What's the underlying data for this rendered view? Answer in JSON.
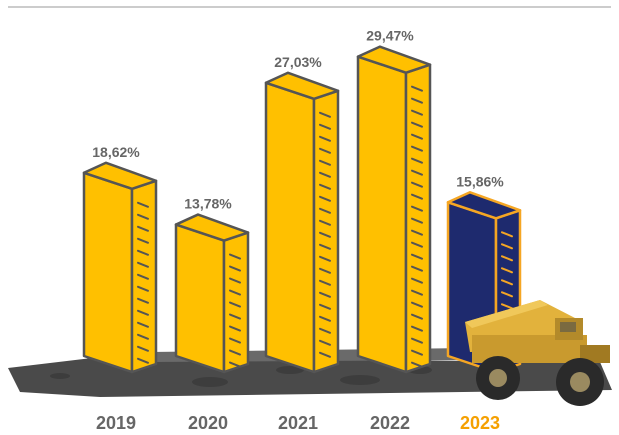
{
  "chart_data": {
    "type": "bar",
    "categories": [
      "2019",
      "2020",
      "2021",
      "2022",
      "2023"
    ],
    "values": [
      18.62,
      13.78,
      27.03,
      29.47,
      15.86
    ],
    "value_labels": [
      "18,62%",
      "13,78%",
      "27,03%",
      "29,47%",
      "15,86%"
    ],
    "highlight_category": "2023",
    "title": "",
    "xlabel": "",
    "ylabel": "",
    "ylim": [
      0,
      32
    ],
    "grid": false,
    "legend": "none"
  },
  "colors": {
    "bar": "#ffc000",
    "bar_highlight": "#1e2a6e",
    "outline": "#555555",
    "outline_highlight": "#f5a623",
    "label": "#666666",
    "label_highlight": "#f5a000",
    "ground": "#4a4a4a",
    "top_line": "#bbbbbb"
  },
  "decorations": {
    "truck_icon": "mining-dump-truck-icon"
  }
}
